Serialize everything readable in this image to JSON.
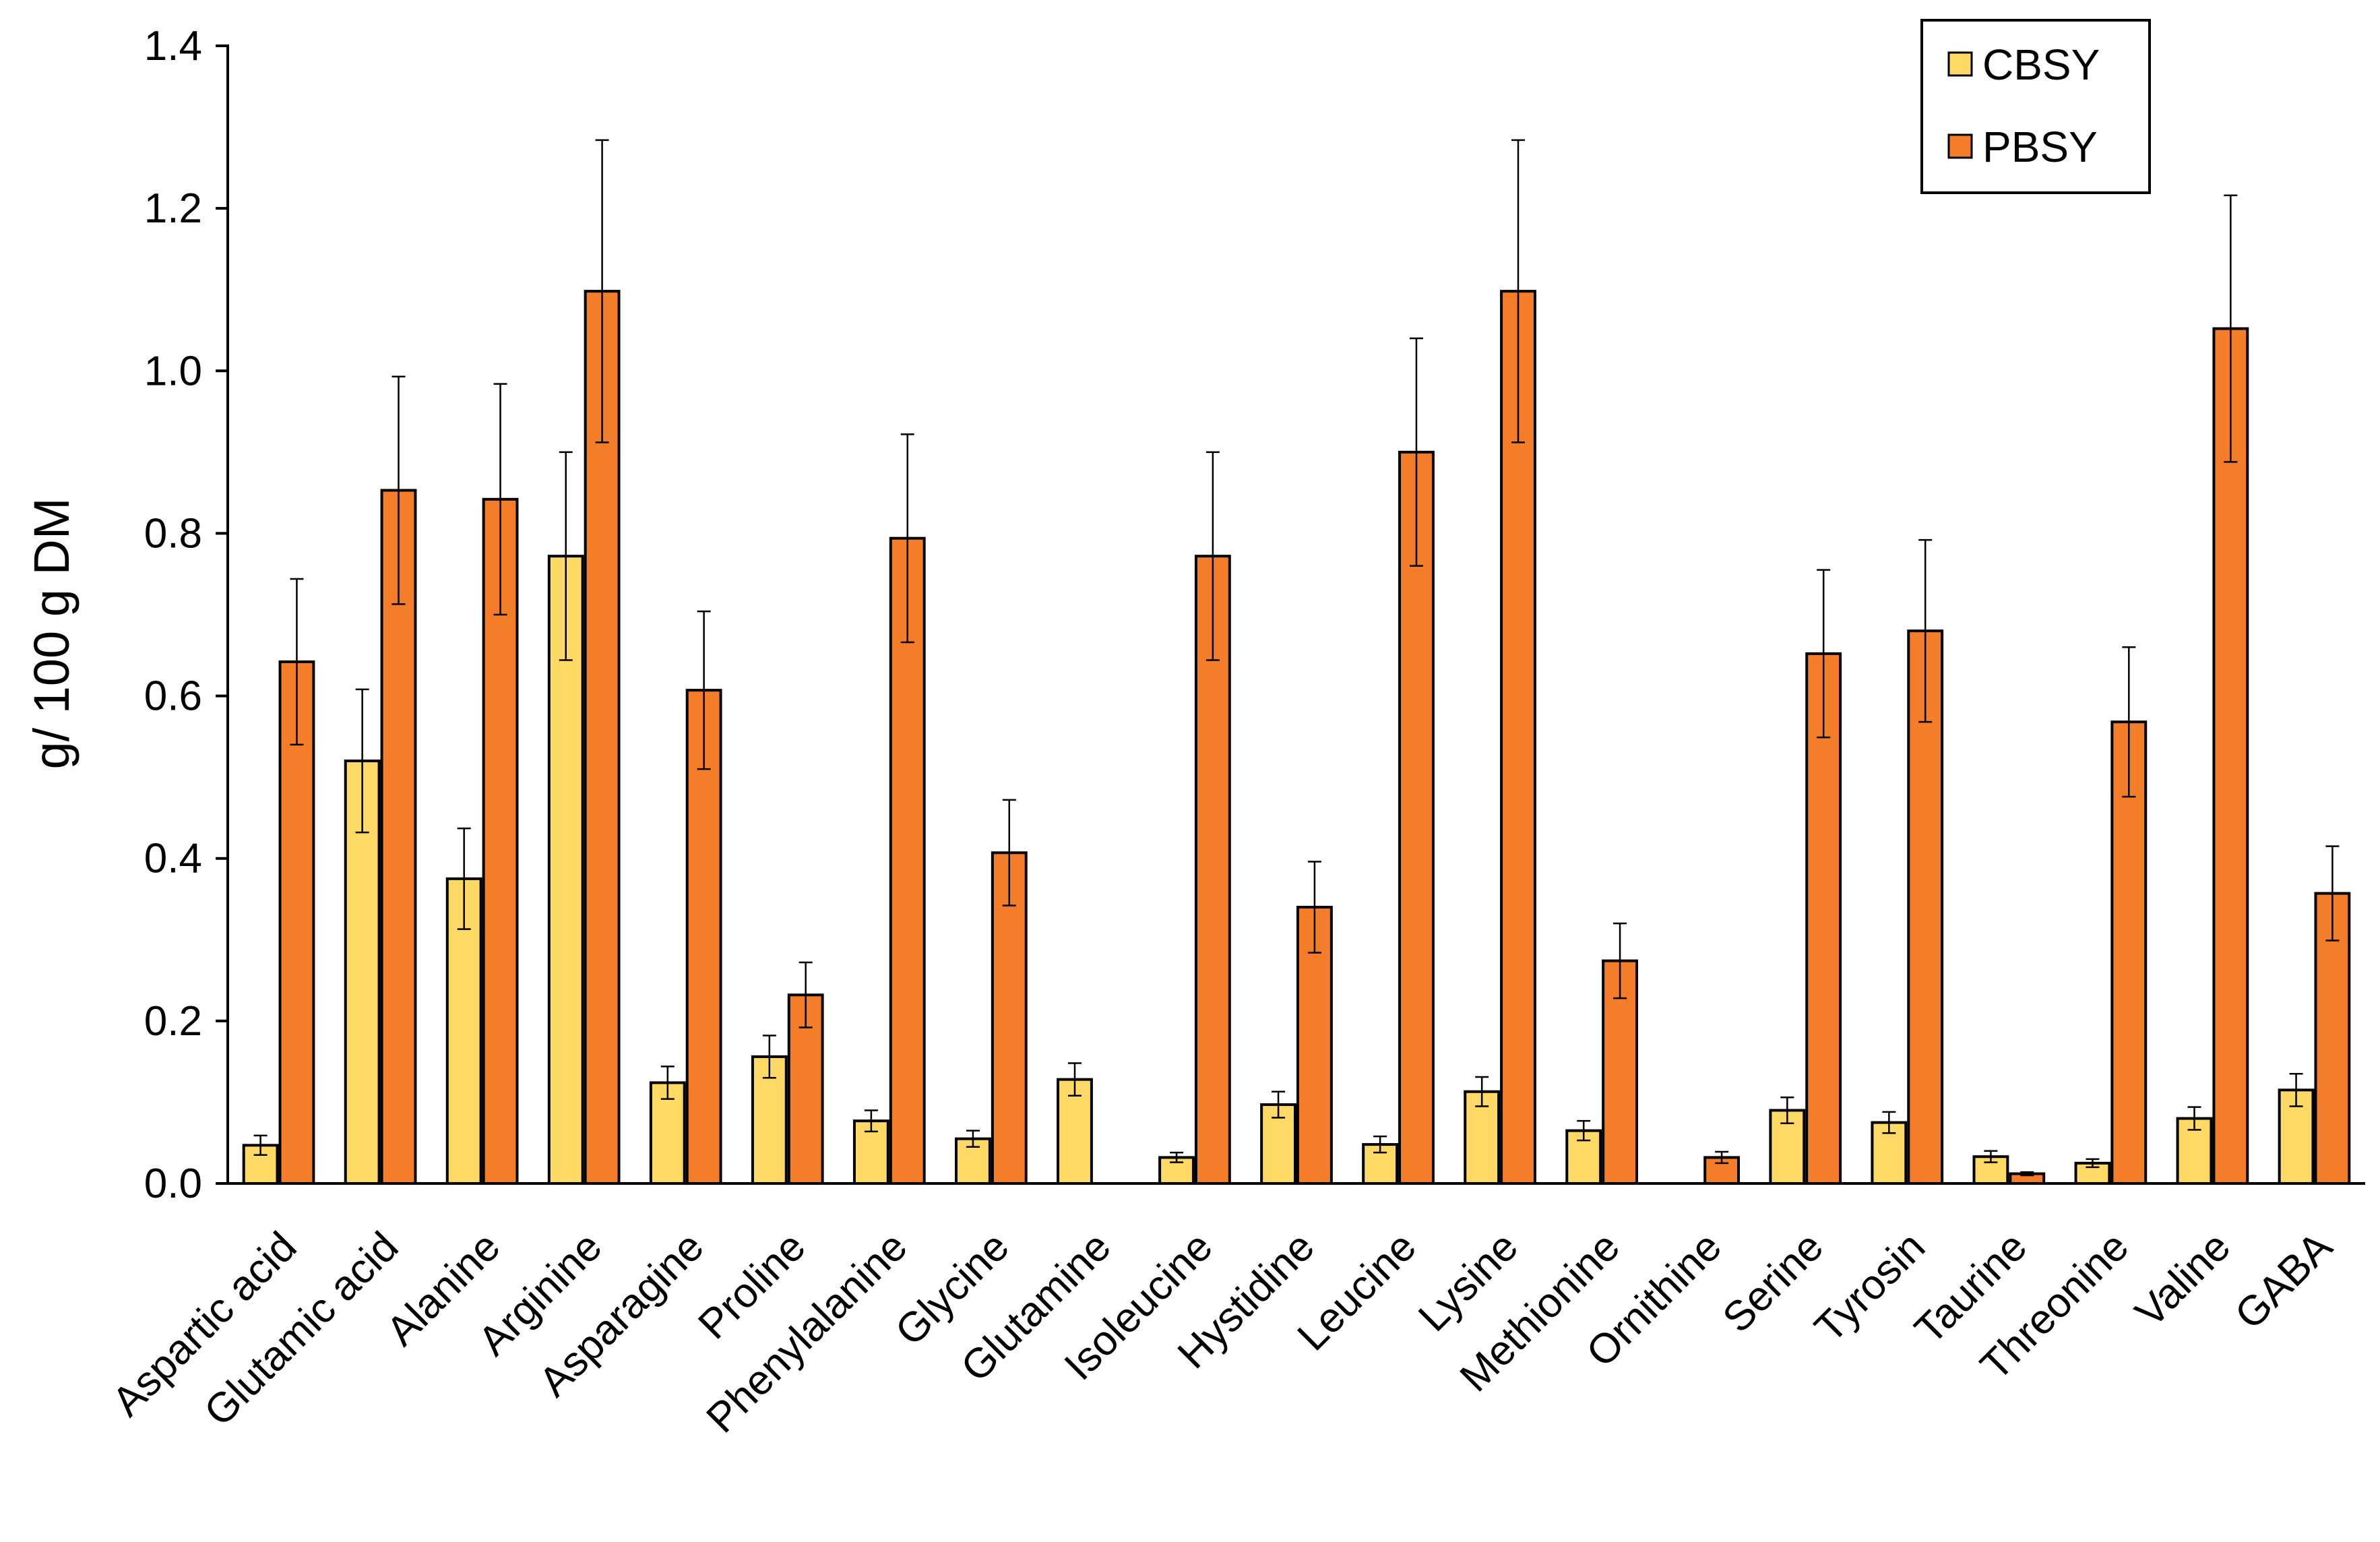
{
  "chart_data": {
    "type": "bar",
    "title": "",
    "xlabel": "",
    "ylabel": "g/ 100 g DM",
    "ylim": [
      0,
      1.4
    ],
    "yticks": [
      "0.0",
      "0.2",
      "0.4",
      "0.6",
      "0.8",
      "1.0",
      "1.2",
      "1.4"
    ],
    "grid": false,
    "legend_position": "top-right",
    "categories": [
      "Aspartic acid",
      "Glutamic acid",
      "Alanine",
      "Arginine",
      "Asparagine",
      "Proline",
      "Phenylalanine",
      "Glycine",
      "Glutamine",
      "Isoleucine",
      "Hystidine",
      "Leucine",
      "Lysine",
      "Methionine",
      "Ornithine",
      "Serine",
      "Tyrosin",
      "Taurine",
      "Threonine",
      "Valine",
      "GABA"
    ],
    "series": [
      {
        "name": "CBSY",
        "color": "#FFD966",
        "values": [
          0.047,
          0.52,
          0.375,
          0.772,
          0.124,
          0.156,
          0.077,
          0.055,
          0.128,
          0.032,
          0.097,
          0.048,
          0.113,
          0.065,
          0.0,
          0.09,
          0.075,
          0.033,
          0.025,
          0.08,
          0.115
        ],
        "errors": [
          0.012,
          0.088,
          0.062,
          0.128,
          0.02,
          0.026,
          0.013,
          0.01,
          0.02,
          0.006,
          0.016,
          0.01,
          0.018,
          0.012,
          0.0,
          0.016,
          0.013,
          0.007,
          0.005,
          0.014,
          0.02
        ]
      },
      {
        "name": "PBSY",
        "color": "#F47D2A",
        "values": [
          0.642,
          0.853,
          0.842,
          1.098,
          0.607,
          0.232,
          0.794,
          0.407,
          0.0,
          0.772,
          0.34,
          0.9,
          1.098,
          0.274,
          0.032,
          0.652,
          0.68,
          0.012,
          0.568,
          1.052,
          0.357
        ],
        "errors": [
          0.102,
          0.14,
          0.142,
          0.186,
          0.097,
          0.04,
          0.128,
          0.065,
          0.0,
          0.128,
          0.056,
          0.14,
          0.186,
          0.046,
          0.007,
          0.103,
          0.112,
          0.002,
          0.092,
          0.164,
          0.058
        ]
      }
    ]
  }
}
